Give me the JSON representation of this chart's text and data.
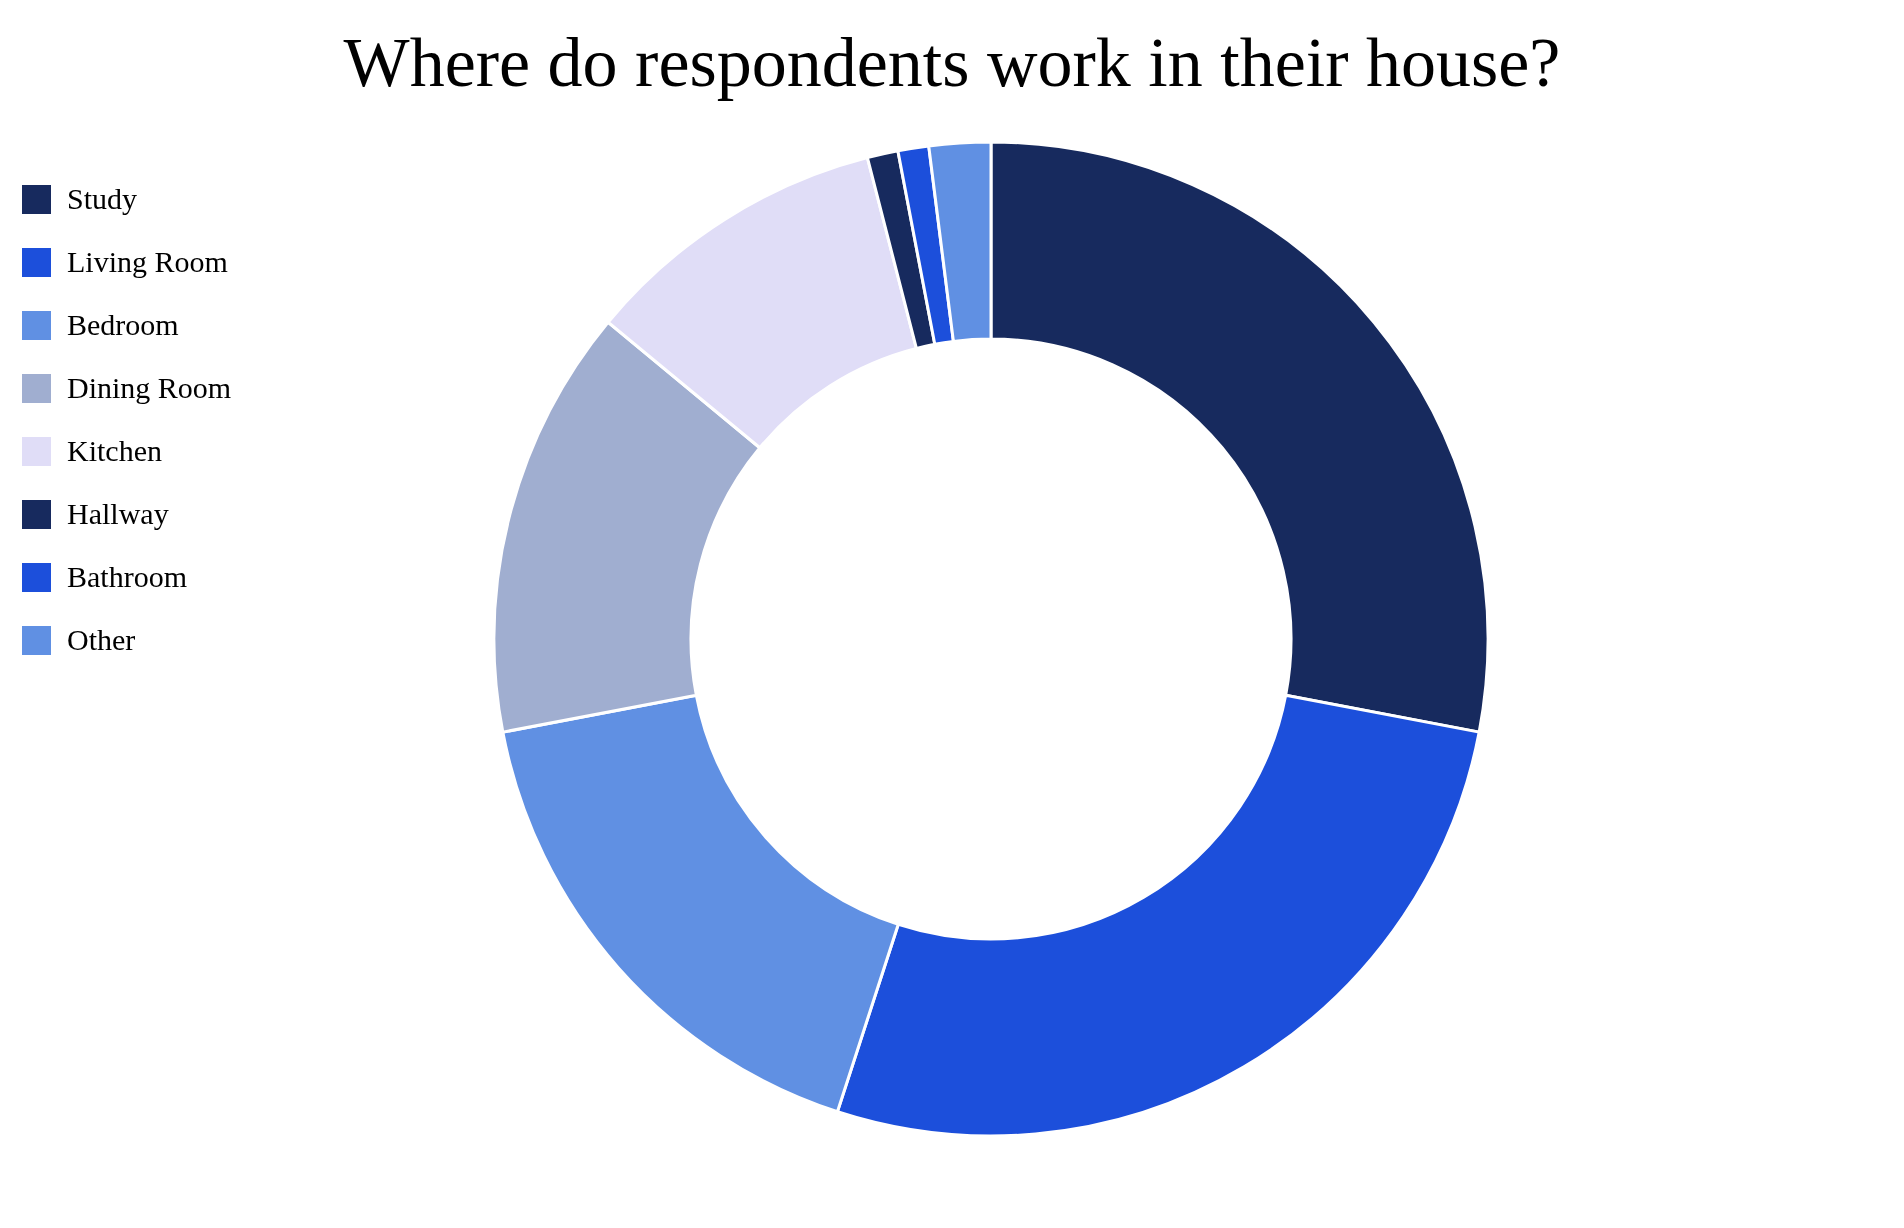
{
  "chart_data": {
    "type": "donut",
    "title": "Where do respondents work in their house?",
    "categories": [
      "Study",
      "Living Room",
      "Bedroom",
      "Dining Room",
      "Kitchen",
      "Hallway",
      "Bathroom",
      "Other"
    ],
    "values": [
      28,
      27,
      17,
      14,
      10,
      1,
      1,
      2
    ],
    "colors": [
      "#172a5e",
      "#1c4fdb",
      "#6090e3",
      "#a0aed0",
      "#e0ddf7",
      "#172a5e",
      "#1c4fdb",
      "#6090e3"
    ],
    "legend": "top left"
  }
}
